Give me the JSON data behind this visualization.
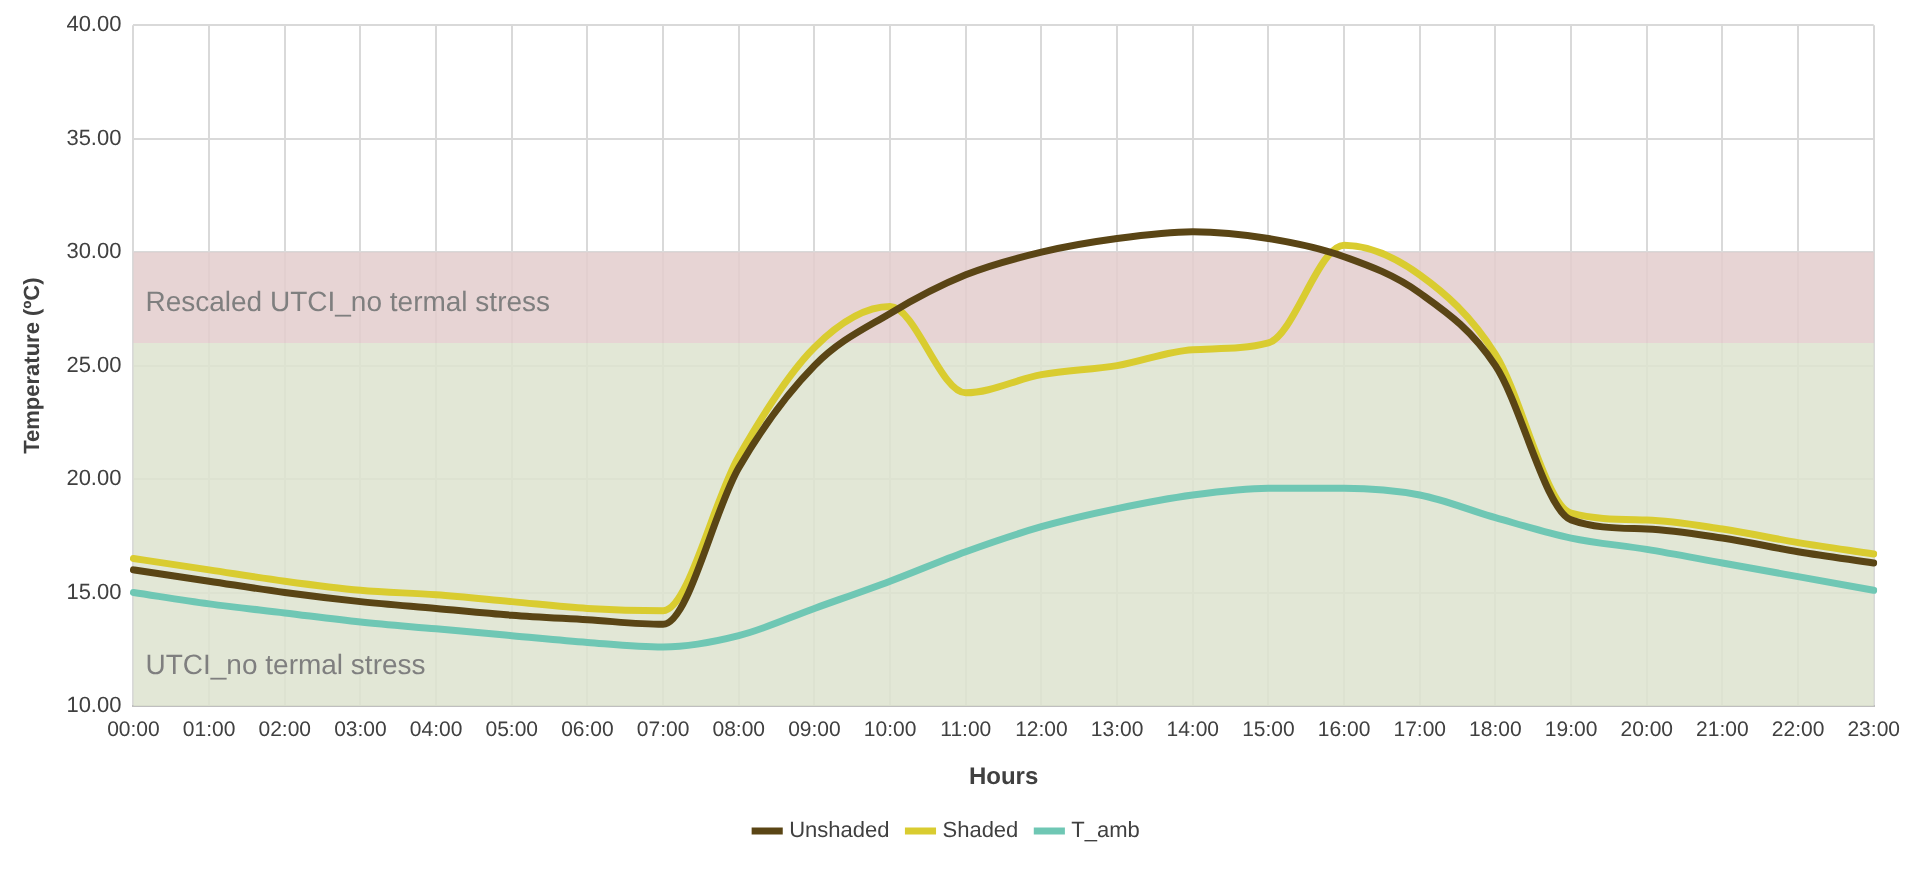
{
  "chart_data": {
    "type": "line",
    "xlabel": "Hours",
    "ylabel": "Temperature (ºC)",
    "categories": [
      "00:00",
      "01:00",
      "02:00",
      "03:00",
      "04:00",
      "05:00",
      "06:00",
      "07:00",
      "08:00",
      "09:00",
      "10:00",
      "11:00",
      "12:00",
      "13:00",
      "14:00",
      "15:00",
      "16:00",
      "17:00",
      "18:00",
      "19:00",
      "20:00",
      "21:00",
      "22:00",
      "23:00"
    ],
    "series": [
      {
        "name": "Unshaded",
        "color": "#5a4515",
        "values": [
          16.0,
          15.5,
          15.0,
          14.6,
          14.3,
          14.0,
          13.8,
          13.6,
          20.5,
          25.0,
          27.3,
          29.0,
          30.0,
          30.6,
          30.9,
          30.6,
          29.8,
          28.2,
          25.0,
          18.2,
          17.8,
          17.4,
          16.8,
          16.3
        ]
      },
      {
        "name": "Shaded",
        "color": "#d9cc30",
        "values": [
          16.5,
          16.0,
          15.5,
          15.1,
          14.9,
          14.6,
          14.3,
          14.2,
          21.0,
          25.8,
          27.6,
          23.8,
          24.6,
          25.0,
          25.7,
          26.0,
          30.3,
          29.0,
          25.5,
          18.5,
          18.2,
          17.8,
          17.2,
          16.7
        ]
      },
      {
        "name": "T_amb",
        "color": "#6fc7b4",
        "values": [
          15.0,
          14.5,
          14.1,
          13.7,
          13.4,
          13.1,
          12.8,
          12.6,
          13.1,
          14.3,
          15.5,
          16.8,
          17.9,
          18.7,
          19.3,
          19.6,
          19.6,
          19.3,
          18.3,
          17.4,
          16.9,
          16.3,
          15.7,
          15.1
        ]
      }
    ],
    "ylim": [
      10,
      40
    ],
    "yticks": [
      {
        "value": 10,
        "label": "10.00"
      },
      {
        "value": 15,
        "label": "15.00"
      },
      {
        "value": 20,
        "label": "20.00"
      },
      {
        "value": 25,
        "label": "25.00"
      },
      {
        "value": 30,
        "label": "30.00"
      },
      {
        "value": 35,
        "label": "35.00"
      },
      {
        "value": 40,
        "label": "40.00"
      }
    ],
    "bands": [
      {
        "axis": "y",
        "from": 10,
        "to": 26,
        "label": "UTCI_no termal stress",
        "color": "#dde3cf"
      },
      {
        "axis": "y",
        "from": 26,
        "to": 30,
        "label": "Rescaled UTCI_no termal stress",
        "color": "#e3cdcd"
      }
    ],
    "grid": true,
    "legend": "bottom",
    "marker": "none",
    "line_style": "solid"
  }
}
